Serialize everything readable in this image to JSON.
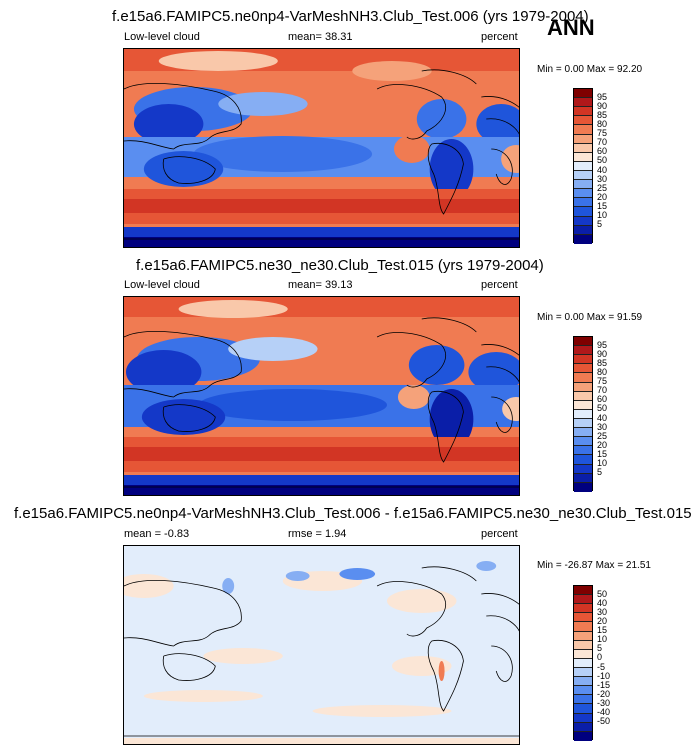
{
  "season": "ANN",
  "colors": {
    "cloud_scale": [
      "#00007f",
      "#0a1ea8",
      "#1438c8",
      "#1f55db",
      "#3a72e8",
      "#5a8ef0",
      "#86aef3",
      "#b6d0f7",
      "#e2edfb",
      "#fbe6d6",
      "#f9c8aa",
      "#f5a27a",
      "#f07b52",
      "#e65636",
      "#d23524",
      "#b0181a",
      "#7f0000"
    ],
    "diff_scale": [
      "#00007f",
      "#0a1ea8",
      "#1438c8",
      "#1f55db",
      "#3a72e8",
      "#5a8ef0",
      "#86aef3",
      "#b6d0f7",
      "#e2edfb",
      "#fbe6d6",
      "#f9c8aa",
      "#f5a27a",
      "#f07b52",
      "#e65636",
      "#d23524",
      "#b0181a",
      "#7f0000"
    ]
  },
  "panels": [
    {
      "title": "f.e15a6.FAMIPC5.ne0np4-VarMeshNH3.Club_Test.006 (yrs 1979-2004)",
      "left_label": "Low-level cloud",
      "stat_label": "mean=  38.31",
      "units": "percent",
      "minmax": "Min =   0.00 Max =  92.20",
      "ticks": [
        "95",
        "90",
        "85",
        "80",
        "75",
        "70",
        "60",
        "50",
        "40",
        "30",
        "25",
        "20",
        "15",
        "10",
        "5"
      ]
    },
    {
      "title": "f.e15a6.FAMIPC5.ne30_ne30.Club_Test.015 (yrs 1979-2004)",
      "left_label": "Low-level cloud",
      "stat_label": "mean=  39.13",
      "units": "percent",
      "minmax": "Min =   0.00 Max =  91.59",
      "ticks": [
        "95",
        "90",
        "85",
        "80",
        "75",
        "70",
        "60",
        "50",
        "40",
        "30",
        "25",
        "20",
        "15",
        "10",
        "5"
      ]
    },
    {
      "title": "f.e15a6.FAMIPC5.ne0np4-VarMeshNH3.Club_Test.006 - f.e15a6.FAMIPC5.ne30_ne30.Club_Test.015",
      "left_label": "mean =  -0.83",
      "stat_label": "rmse =   1.94",
      "units": "percent",
      "minmax": "Min = -26.87 Max =  21.51",
      "ticks": [
        "50",
        "40",
        "30",
        "20",
        "15",
        "10",
        "5",
        "0",
        "-5",
        "-10",
        "-15",
        "-20",
        "-30",
        "-40",
        "-50"
      ]
    }
  ],
  "chart_data": [
    {
      "type": "heatmap",
      "title": "f.e15a6.FAMIPC5.ne0np4-VarMeshNH3.Club_Test.006 (yrs 1979-2004)",
      "variable": "Low-level cloud",
      "units": "percent",
      "mean": 38.31,
      "min": 0.0,
      "max": 92.2,
      "colorbar_levels": [
        5,
        10,
        15,
        20,
        25,
        30,
        40,
        50,
        60,
        70,
        75,
        80,
        85,
        90,
        95
      ]
    },
    {
      "type": "heatmap",
      "title": "f.e15a6.FAMIPC5.ne30_ne30.Club_Test.015 (yrs 1979-2004)",
      "variable": "Low-level cloud",
      "units": "percent",
      "mean": 39.13,
      "min": 0.0,
      "max": 91.59,
      "colorbar_levels": [
        5,
        10,
        15,
        20,
        25,
        30,
        40,
        50,
        60,
        70,
        75,
        80,
        85,
        90,
        95
      ]
    },
    {
      "type": "heatmap",
      "title": "f.e15a6.FAMIPC5.ne0np4-VarMeshNH3.Club_Test.006 - f.e15a6.FAMIPC5.ne30_ne30.Club_Test.015",
      "units": "percent",
      "mean": -0.83,
      "rmse": 1.94,
      "min": -26.87,
      "max": 21.51,
      "colorbar_levels": [
        -50,
        -40,
        -30,
        -20,
        -15,
        -10,
        -5,
        0,
        5,
        10,
        15,
        20,
        30,
        40,
        50
      ]
    }
  ]
}
